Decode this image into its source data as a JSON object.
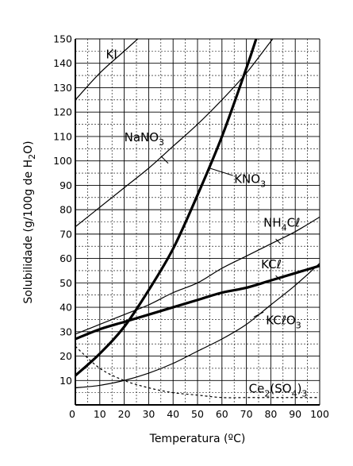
{
  "chart_data": {
    "type": "line",
    "xlabel": "Temperatura (ºC)",
    "ylabel": "Solubilidade (g/100g de H2O)",
    "xlim": [
      0,
      100
    ],
    "ylim": [
      0,
      150
    ],
    "x_ticks": [
      0,
      10,
      20,
      30,
      40,
      50,
      60,
      70,
      80,
      90,
      100
    ],
    "y_ticks": [
      0,
      10,
      20,
      30,
      40,
      50,
      60,
      70,
      80,
      90,
      100,
      110,
      120,
      130,
      140,
      150
    ],
    "minor_grid_step_x": 5,
    "minor_grid_step_y": 5,
    "grid": true,
    "series": [
      {
        "name": "KI",
        "label_parts": [
          {
            "t": "KI"
          }
        ],
        "style": "thin",
        "points": [
          [
            0,
            125
          ],
          [
            10,
            136
          ],
          [
            20,
            145
          ],
          [
            30,
            154
          ]
        ]
      },
      {
        "name": "NaNO3",
        "label_parts": [
          {
            "t": "NaNO"
          },
          {
            "t": "3",
            "sub": true
          }
        ],
        "style": "thin",
        "points": [
          [
            0,
            73
          ],
          [
            10,
            81
          ],
          [
            20,
            89
          ],
          [
            30,
            97
          ],
          [
            40,
            106
          ],
          [
            50,
            115
          ],
          [
            60,
            125
          ],
          [
            70,
            136
          ],
          [
            80,
            149
          ],
          [
            85,
            155
          ]
        ]
      },
      {
        "name": "KNO3",
        "label_parts": [
          {
            "t": "KNO"
          },
          {
            "t": "3",
            "sub": true
          }
        ],
        "style": "thick",
        "points": [
          [
            0,
            12
          ],
          [
            10,
            21
          ],
          [
            20,
            32
          ],
          [
            30,
            47
          ],
          [
            40,
            64
          ],
          [
            50,
            86
          ],
          [
            60,
            110
          ],
          [
            70,
            138
          ],
          [
            74,
            150
          ]
        ]
      },
      {
        "name": "NH4Cl",
        "label_parts": [
          {
            "t": "NH"
          },
          {
            "t": "4",
            "sub": true
          },
          {
            "t": "Cℓ"
          }
        ],
        "style": "thin",
        "points": [
          [
            0,
            29
          ],
          [
            10,
            33
          ],
          [
            20,
            37
          ],
          [
            30,
            41
          ],
          [
            40,
            46
          ],
          [
            50,
            50
          ],
          [
            60,
            56
          ],
          [
            70,
            61
          ],
          [
            80,
            66
          ],
          [
            90,
            71
          ],
          [
            100,
            77
          ]
        ]
      },
      {
        "name": "KCl",
        "label_parts": [
          {
            "t": "KCℓ"
          }
        ],
        "style": "thick",
        "points": [
          [
            0,
            27
          ],
          [
            10,
            31
          ],
          [
            20,
            34
          ],
          [
            30,
            37
          ],
          [
            40,
            40
          ],
          [
            50,
            43
          ],
          [
            60,
            46
          ],
          [
            70,
            48
          ],
          [
            80,
            51
          ],
          [
            90,
            54
          ],
          [
            100,
            57
          ]
        ]
      },
      {
        "name": "KClO3",
        "label_parts": [
          {
            "t": "KCℓO"
          },
          {
            "t": "3",
            "sub": true
          }
        ],
        "style": "thin",
        "points": [
          [
            0,
            7
          ],
          [
            10,
            8
          ],
          [
            20,
            10
          ],
          [
            30,
            13
          ],
          [
            40,
            17
          ],
          [
            50,
            22
          ],
          [
            60,
            27
          ],
          [
            70,
            33
          ],
          [
            80,
            41
          ],
          [
            90,
            49
          ],
          [
            100,
            58
          ]
        ]
      },
      {
        "name": "Ce2(SO4)3",
        "label_parts": [
          {
            "t": "Ce"
          },
          {
            "t": "2",
            "sub": true
          },
          {
            "t": "(SO"
          },
          {
            "t": "4",
            "sub": true
          },
          {
            "t": ")"
          },
          {
            "t": "3",
            "sub": true
          }
        ],
        "style": "dashed",
        "points": [
          [
            0,
            24
          ],
          [
            10,
            15
          ],
          [
            20,
            10
          ],
          [
            30,
            7
          ],
          [
            40,
            5
          ],
          [
            50,
            4
          ],
          [
            60,
            3
          ],
          [
            70,
            3
          ],
          [
            80,
            3
          ],
          [
            90,
            3
          ],
          [
            100,
            3
          ]
        ]
      }
    ]
  }
}
